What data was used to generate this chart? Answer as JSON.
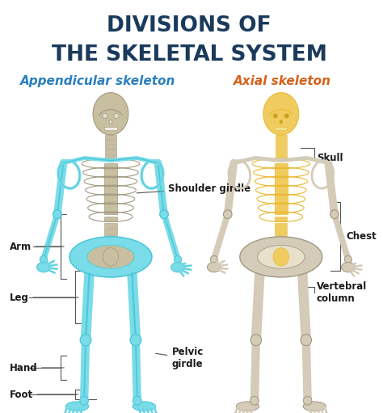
{
  "title_line1": "DIVISIONS OF",
  "title_line2": "THE SKELETAL SYSTEM",
  "title_color": "#1a3a5c",
  "title_fontsize": 19,
  "bg_color": "#ffffff",
  "left_label": "Appendicular skeleton",
  "left_label_color": "#2a7fc0",
  "right_label": "Axial skeleton",
  "right_label_color": "#d4621a",
  "label_fontsize": 11,
  "appendicular_color": "#4dc8d8",
  "appendicular_fill": "#7adce8",
  "axial_color": "#e8b830",
  "axial_fill": "#f0cc60",
  "bone_color": "#c8bfa0",
  "bone_edge": "#a09880",
  "annotation_fontsize": 8.5,
  "annotation_color": "#1a1a1a",
  "line_color": "#555555"
}
